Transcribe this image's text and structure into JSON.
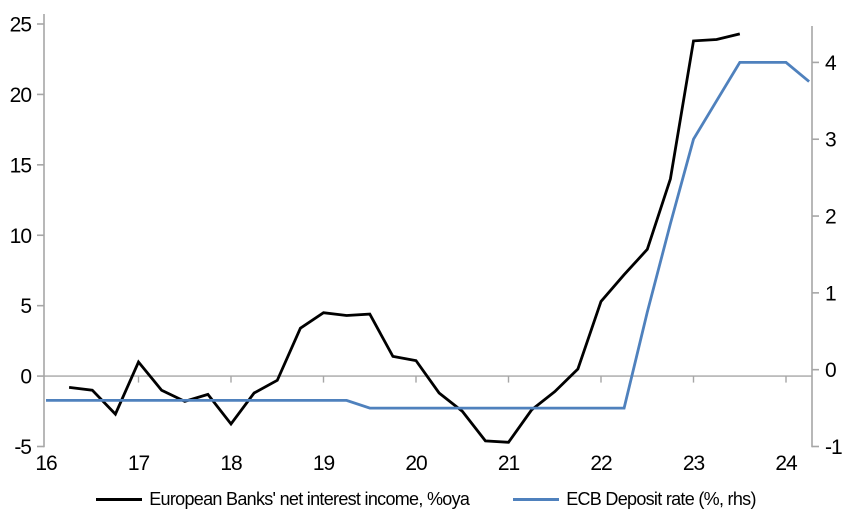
{
  "chart_data": {
    "type": "line",
    "title": "",
    "xlabel": "",
    "ylabel_left": "",
    "ylabel_right": "",
    "x_ticks": [
      16,
      17,
      18,
      19,
      20,
      21,
      22,
      23,
      24
    ],
    "x_tick_labels": [
      "16",
      "17",
      "18",
      "19",
      "20",
      "21",
      "22",
      "23",
      "24"
    ],
    "x_range": [
      16,
      24.3
    ],
    "left_axis": {
      "min": -5,
      "max": 25,
      "ticks": [
        -5,
        0,
        5,
        10,
        15,
        20,
        25
      ],
      "tick_labels": [
        "-5",
        "0",
        "5",
        "10",
        "15",
        "20",
        "25"
      ]
    },
    "right_axis": {
      "min": -1,
      "max": 4.5,
      "ticks": [
        -1,
        0,
        1,
        2,
        3,
        4
      ],
      "tick_labels": [
        "-1",
        "0",
        "1",
        "2",
        "3",
        "4"
      ]
    },
    "grid": "zero-line-only",
    "legend_position": "bottom",
    "series": [
      {
        "name": "European Banks' net interest income, %oya",
        "axis": "left",
        "color": "#000000",
        "x": [
          16.25,
          16.5,
          16.75,
          17.0,
          17.25,
          17.5,
          17.75,
          18.0,
          18.25,
          18.5,
          18.75,
          19.0,
          19.25,
          19.5,
          19.75,
          20.0,
          20.25,
          20.5,
          20.75,
          21.0,
          21.25,
          21.5,
          21.75,
          22.0,
          22.25,
          22.5,
          22.75,
          23.0,
          23.25,
          23.5
        ],
        "values": [
          -0.8,
          -1.0,
          -2.7,
          1.0,
          -1.0,
          -1.8,
          -1.3,
          -3.4,
          -1.2,
          -0.3,
          3.4,
          4.5,
          4.3,
          4.4,
          1.4,
          1.1,
          -1.2,
          -2.5,
          -4.6,
          -4.7,
          -2.4,
          -1.1,
          0.5,
          5.3,
          7.2,
          9.0,
          14.0,
          23.8,
          23.9,
          24.3
        ]
      },
      {
        "name": "ECB Deposit rate (%, rhs)",
        "axis": "right",
        "color": "#4F81BD",
        "x": [
          16.0,
          19.25,
          19.5,
          22.25,
          22.5,
          22.75,
          23.0,
          23.25,
          23.5,
          24.0,
          24.25
        ],
        "values": [
          -0.4,
          -0.4,
          -0.5,
          -0.5,
          0.75,
          1.9,
          3.0,
          3.5,
          4.0,
          4.0,
          3.75
        ]
      }
    ]
  },
  "colors": {
    "axis": "#A6A6A6",
    "zero_gridline": "#A6A6A6",
    "text": "#000000",
    "background": "#FFFFFF",
    "nii_line": "#000000",
    "ecb_line": "#4F81BD"
  }
}
